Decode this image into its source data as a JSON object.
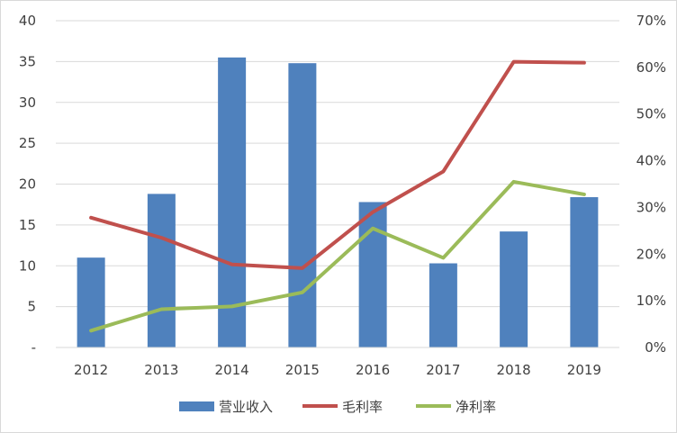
{
  "chart_data": {
    "type": "bar+line",
    "categories": [
      "2012",
      "2013",
      "2014",
      "2015",
      "2016",
      "2017",
      "2018",
      "2019"
    ],
    "bar_series": {
      "name": "营业收入",
      "color": "#4f81bd",
      "values": [
        11.0,
        18.8,
        35.5,
        34.8,
        17.8,
        10.3,
        14.2,
        18.4
      ]
    },
    "line_series": [
      {
        "name": "毛利率",
        "color": "#c0504d",
        "axis": "right",
        "values": [
          27.8,
          23.5,
          17.8,
          17.0,
          29.0,
          37.7,
          61.2,
          61.0
        ]
      },
      {
        "name": "净利率",
        "color": "#9bbb59",
        "axis": "right",
        "values": [
          3.6,
          8.2,
          8.8,
          11.8,
          25.5,
          19.2,
          35.5,
          32.8
        ]
      }
    ],
    "y_left": {
      "min": 0,
      "max": 40,
      "step": 5,
      "tick_labels": [
        "-",
        "5",
        "10",
        "15",
        "20",
        "25",
        "30",
        "35",
        "40"
      ]
    },
    "y_right": {
      "min": 0,
      "max": 70,
      "step": 10,
      "tick_labels": [
        "0%",
        "10%",
        "20%",
        "30%",
        "40%",
        "50%",
        "60%",
        "70%"
      ]
    },
    "grid": true,
    "legend_position": "bottom"
  }
}
